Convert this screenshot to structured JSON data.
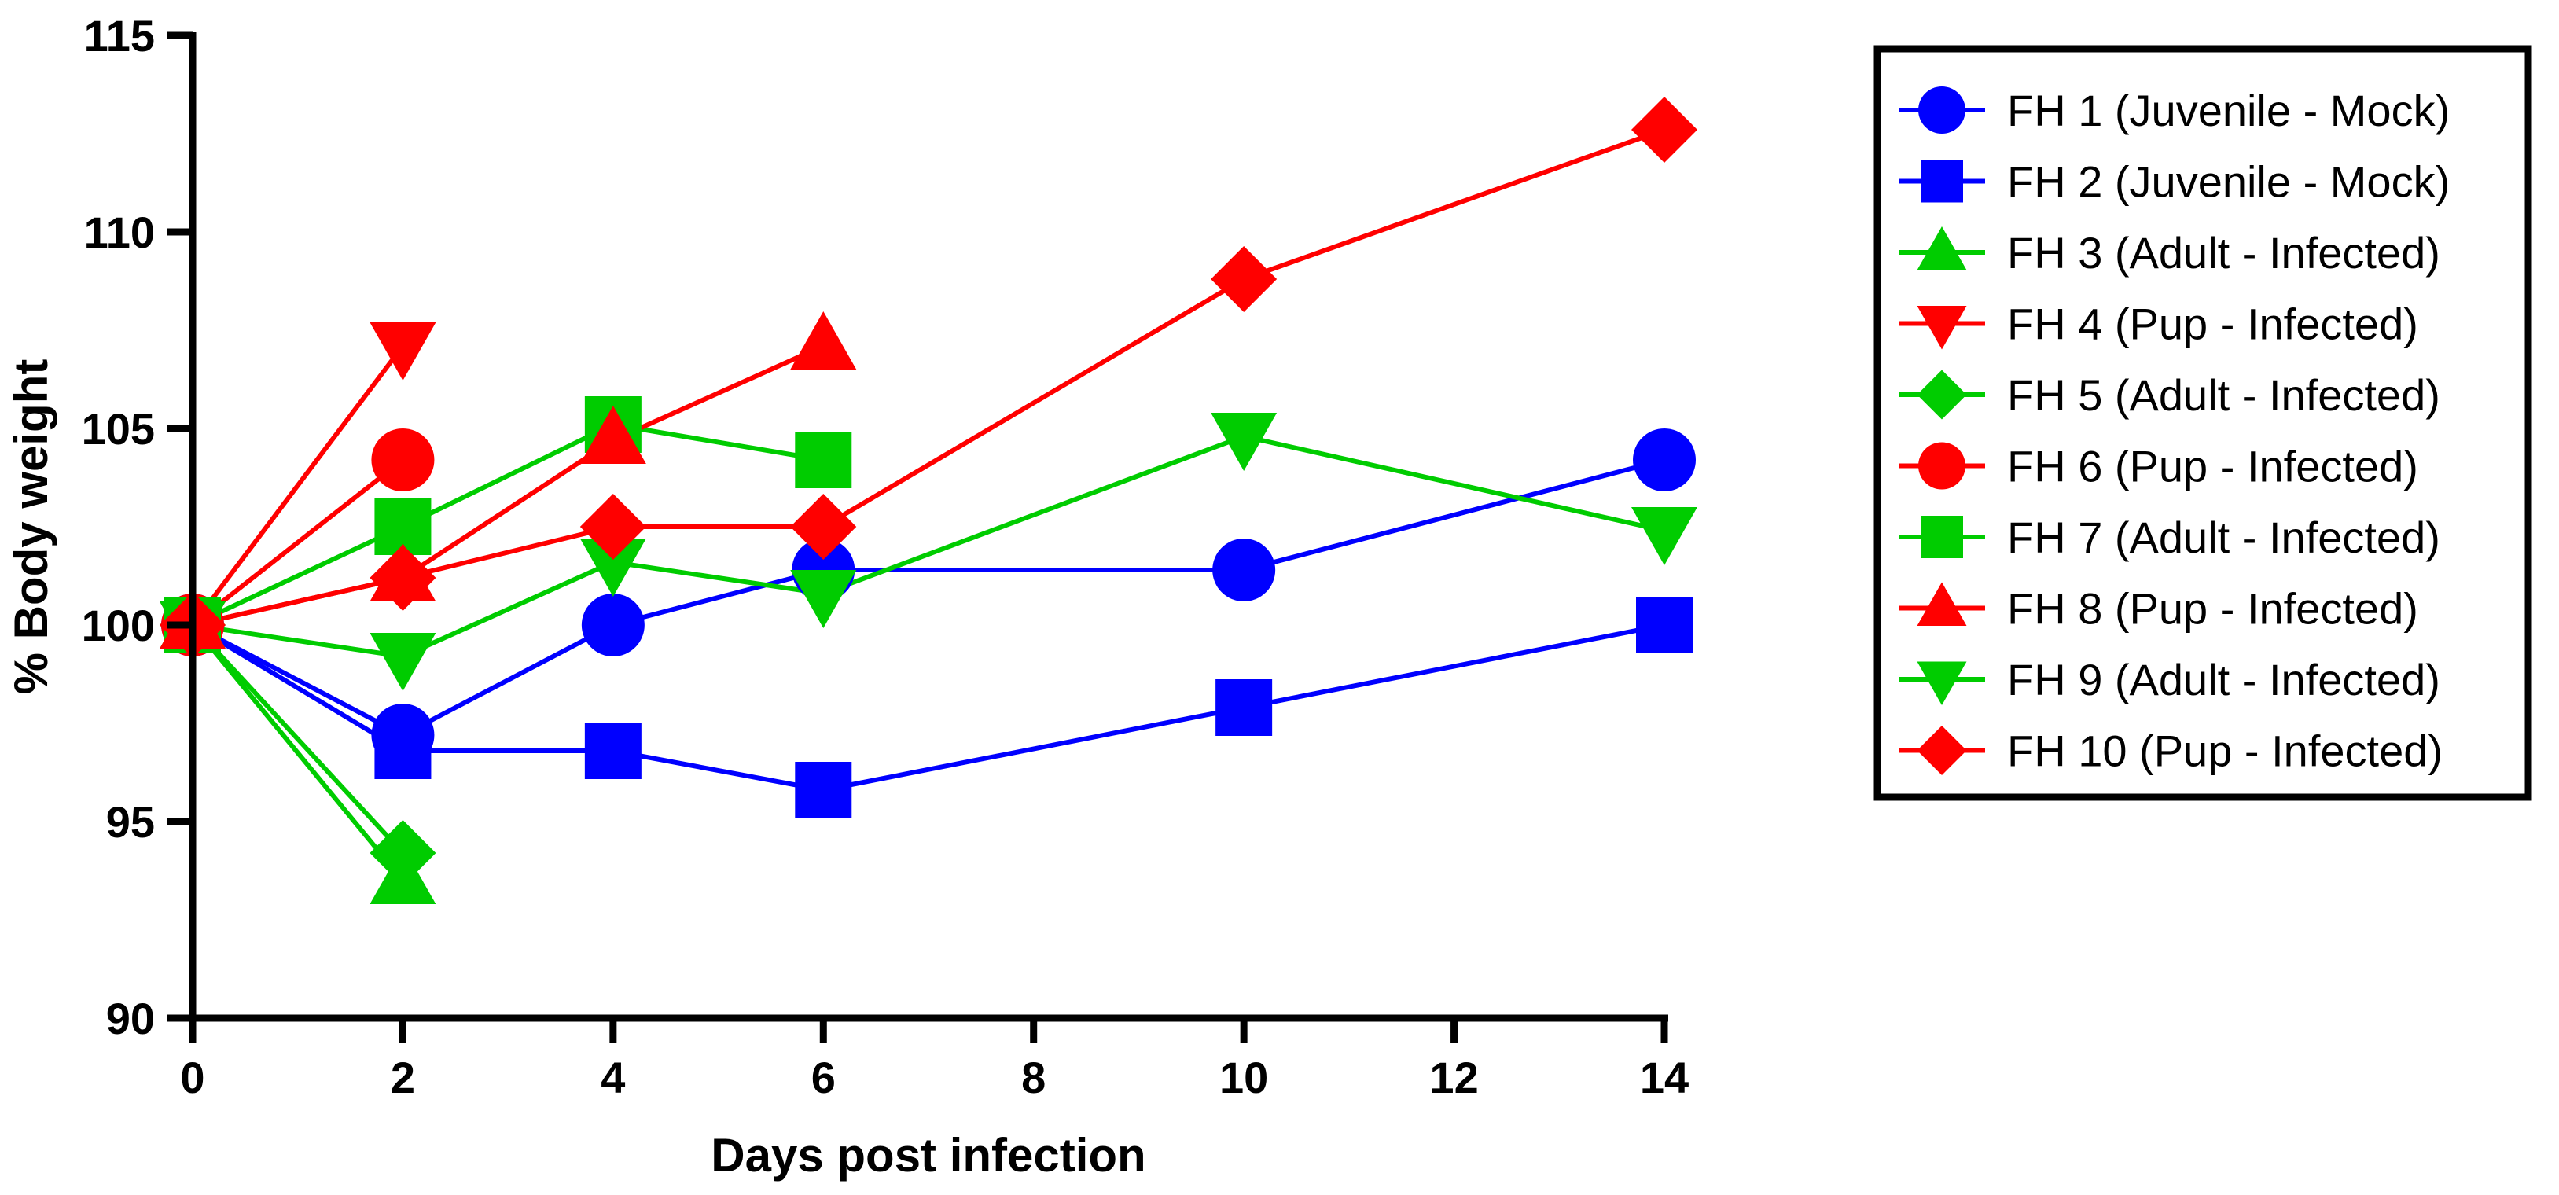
{
  "chart_data": {
    "type": "line",
    "xlabel": "Days post infection",
    "ylabel": "% Body weight",
    "xlim": [
      0,
      14
    ],
    "ylim": [
      90,
      115
    ],
    "xticks": [
      0,
      2,
      4,
      6,
      8,
      10,
      12,
      14
    ],
    "yticks": [
      90,
      95,
      100,
      105,
      110,
      115
    ],
    "grid": false,
    "legend_position": "right",
    "series": [
      {
        "name": "FH 1 (Juvenile - Mock)",
        "color": "#0000ff",
        "marker": "circle",
        "points": [
          [
            0,
            100
          ],
          [
            2,
            97.2
          ],
          [
            4,
            100
          ],
          [
            6,
            101.4
          ],
          [
            10,
            101.4
          ],
          [
            14,
            104.2
          ]
        ]
      },
      {
        "name": "FH 2 (Juvenile - Mock)",
        "color": "#0000ff",
        "marker": "square",
        "points": [
          [
            0,
            100
          ],
          [
            2,
            96.8
          ],
          [
            4,
            96.8
          ],
          [
            6,
            95.8
          ],
          [
            10,
            97.9
          ],
          [
            14,
            100
          ]
        ]
      },
      {
        "name": "FH 3 (Adult - Infected)",
        "color": "#00cc00",
        "marker": "triangle-up",
        "points": [
          [
            0,
            100
          ],
          [
            2,
            93.5
          ]
        ]
      },
      {
        "name": "FH 4 (Pup - Infected)",
        "color": "#ff0000",
        "marker": "triangle-down",
        "points": [
          [
            0,
            100
          ],
          [
            2,
            107.1
          ]
        ]
      },
      {
        "name": "FH 5 (Adult - Infected)",
        "color": "#00cc00",
        "marker": "diamond",
        "points": [
          [
            0,
            100
          ],
          [
            2,
            94.2
          ]
        ]
      },
      {
        "name": "FH 6 (Pup - Infected)",
        "color": "#ff0000",
        "marker": "circle",
        "points": [
          [
            0,
            100
          ],
          [
            2,
            104.2
          ]
        ]
      },
      {
        "name": "FH 7 (Adult - Infected)",
        "color": "#00cc00",
        "marker": "square",
        "points": [
          [
            0,
            100
          ],
          [
            2,
            102.5
          ],
          [
            4,
            105.1
          ],
          [
            6,
            104.2
          ]
        ]
      },
      {
        "name": "FH 8 (Pup - Infected)",
        "color": "#ff0000",
        "marker": "triangle-up",
        "points": [
          [
            0,
            100
          ],
          [
            2,
            101.2
          ],
          [
            4,
            104.7
          ],
          [
            6,
            107.1
          ]
        ]
      },
      {
        "name": "FH 9 (Adult - Infected)",
        "color": "#00cc00",
        "marker": "triangle-down",
        "points": [
          [
            0,
            100
          ],
          [
            2,
            99.2
          ],
          [
            4,
            101.6
          ],
          [
            6,
            100.8
          ],
          [
            10,
            104.8
          ],
          [
            14,
            102.4
          ]
        ]
      },
      {
        "name": "FH 10 (Pup - Infected)",
        "color": "#ff0000",
        "marker": "diamond",
        "points": [
          [
            0,
            100
          ],
          [
            2,
            101.2
          ],
          [
            4,
            102.5
          ],
          [
            6,
            102.5
          ],
          [
            10,
            108.8
          ],
          [
            14,
            112.6
          ]
        ]
      }
    ]
  }
}
